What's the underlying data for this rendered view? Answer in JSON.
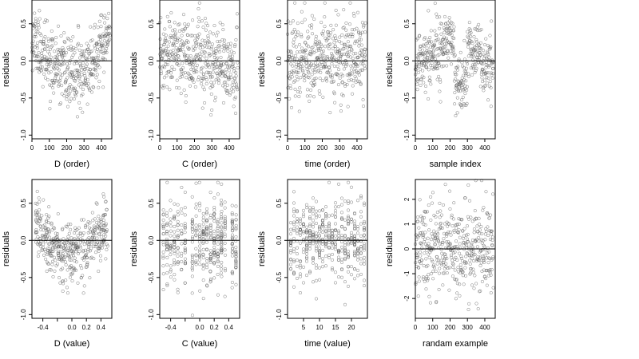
{
  "figure": {
    "grid_columns": 4,
    "grid_rows": 2
  },
  "chart_data": [
    {
      "type": "scatter",
      "title": "",
      "xlabel": "D (order)",
      "ylabel": "residuals",
      "xlim": [
        0,
        460
      ],
      "ylim": [
        -1.05,
        0.82
      ],
      "xticks": [
        0,
        100,
        200,
        300,
        400
      ],
      "yticks": [
        -1.0,
        -0.5,
        0.0,
        0.5
      ],
      "ytick_labels": [
        "-1.0",
        "-0.5",
        "0.0",
        "0.5"
      ],
      "hline": 0,
      "n": 450,
      "pattern": "u_order",
      "seed": 11
    },
    {
      "type": "scatter",
      "title": "",
      "xlabel": "C (order)",
      "ylabel": "residuals",
      "xlim": [
        0,
        460
      ],
      "ylim": [
        -1.05,
        0.82
      ],
      "xticks": [
        0,
        100,
        200,
        300,
        400
      ],
      "yticks": [
        -1.0,
        -0.5,
        0.0,
        0.5
      ],
      "ytick_labels": [
        "-1.0",
        "-0.5",
        "0.0",
        "0.5"
      ],
      "hline": 0,
      "n": 450,
      "pattern": "wave_order",
      "seed": 23
    },
    {
      "type": "scatter",
      "title": "",
      "xlabel": "time (order)",
      "ylabel": "residuals",
      "xlim": [
        0,
        460
      ],
      "ylim": [
        -1.05,
        0.82
      ],
      "xticks": [
        0,
        100,
        200,
        300,
        400
      ],
      "yticks": [
        -1.0,
        -0.5,
        0.0,
        0.5
      ],
      "ytick_labels": [
        "-1.0",
        "-0.5",
        "0.0",
        "0.5"
      ],
      "hline": 0,
      "n": 450,
      "pattern": "uniform_order",
      "seed": 37
    },
    {
      "type": "scatter",
      "title": "",
      "xlabel": "sample index",
      "ylabel": "residuals",
      "xlim": [
        0,
        460
      ],
      "ylim": [
        -1.05,
        0.82
      ],
      "xticks": [
        0,
        100,
        200,
        300,
        400
      ],
      "yticks": [
        -1.0,
        -0.5,
        0.0,
        0.5
      ],
      "ytick_labels": [
        "-1.0",
        "-0.5",
        "0.0",
        "0.5"
      ],
      "hline": 0,
      "n": 450,
      "pattern": "blocks_order",
      "seed": 41
    },
    {
      "type": "scatter",
      "title": "",
      "xlabel": "D (value)",
      "ylabel": "residuals",
      "xlim": [
        -0.55,
        0.55
      ],
      "ylim": [
        -1.05,
        0.82
      ],
      "xticks": [
        -0.4,
        -0.2,
        0.0,
        0.2,
        0.4
      ],
      "xtick_labels": [
        "-0.4",
        "",
        "0.0",
        "0.2",
        "0.4"
      ],
      "yticks": [
        -1.0,
        -0.5,
        0.0,
        0.5
      ],
      "ytick_labels": [
        "-1.0",
        "-0.5",
        "0.0",
        "0.5"
      ],
      "hline": 0,
      "n": 450,
      "pattern": "u_value",
      "seed": 53
    },
    {
      "type": "scatter",
      "title": "",
      "xlabel": "C (value)",
      "ylabel": "residuals",
      "xlim": [
        -0.55,
        0.55
      ],
      "ylim": [
        -1.05,
        0.82
      ],
      "xticks": [
        -0.4,
        -0.2,
        0.0,
        0.2,
        0.4
      ],
      "xtick_labels": [
        "-0.4",
        "",
        "0.0",
        "0.2",
        "0.4"
      ],
      "yticks": [
        -1.0,
        -0.5,
        0.0,
        0.5
      ],
      "ytick_labels": [
        "-1.0",
        "-0.5",
        "0.0",
        "0.5"
      ],
      "hline": 0,
      "n": 450,
      "pattern": "discrete_value",
      "seed": 67,
      "discrete_x": [
        -0.5,
        -0.45,
        -0.4,
        -0.35,
        -0.3,
        -0.25,
        -0.2,
        -0.1,
        -0.05,
        0.0,
        0.05,
        0.1,
        0.15,
        0.2,
        0.25,
        0.3,
        0.35,
        0.45,
        0.5
      ]
    },
    {
      "type": "scatter",
      "title": "",
      "xlabel": "time (value)",
      "ylabel": "residuals",
      "xlim": [
        0,
        25
      ],
      "ylim": [
        -1.05,
        0.82
      ],
      "xticks": [
        5,
        10,
        15,
        20
      ],
      "xtick_labels": [
        "5",
        "10",
        "15",
        "20"
      ],
      "yticks": [
        -1.0,
        -0.5,
        0.0,
        0.5
      ],
      "ytick_labels": [
        "-1.0",
        "-0.5",
        "0.0",
        "0.5"
      ],
      "hline": 0,
      "n": 450,
      "pattern": "discrete_time",
      "seed": 79,
      "discrete_x": [
        1,
        2,
        3,
        4,
        5,
        6,
        7,
        8,
        9,
        10,
        11,
        12,
        13,
        14,
        15,
        16,
        17,
        18,
        19,
        20,
        21,
        22,
        23,
        24
      ]
    },
    {
      "type": "scatter",
      "title": "",
      "xlabel": "randam example",
      "ylabel": "residuals",
      "xlim": [
        0,
        460
      ],
      "ylim": [
        -2.8,
        2.8
      ],
      "xticks": [
        0,
        100,
        200,
        300,
        400
      ],
      "yticks": [
        -2,
        -1,
        0,
        1,
        2
      ],
      "ytick_labels": [
        "-2",
        "-1",
        "0",
        "1",
        "2"
      ],
      "hline": 0,
      "n": 450,
      "pattern": "normal",
      "seed": 97
    }
  ]
}
